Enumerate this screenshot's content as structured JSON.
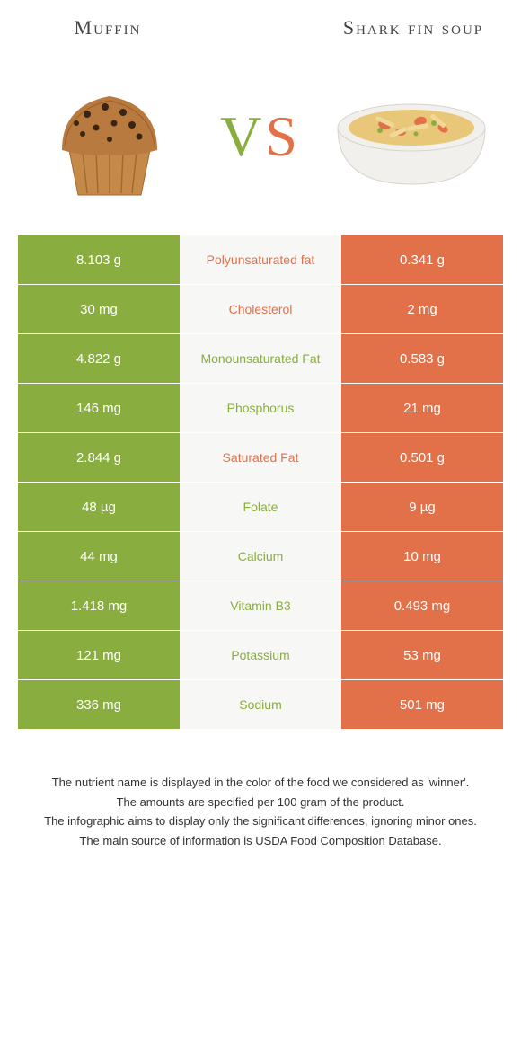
{
  "colors": {
    "left": "#8aad3f",
    "right": "#e2714a",
    "mid_bg": "#f7f7f5",
    "text_dark": "#333333"
  },
  "header": {
    "left_title": "Muffin",
    "right_title": "Shark fin soup",
    "vs_v": "V",
    "vs_s": "S"
  },
  "rows": [
    {
      "left": "8.103 g",
      "label": "Polyunsaturated fat",
      "right": "0.341 g",
      "winner": "right"
    },
    {
      "left": "30 mg",
      "label": "Cholesterol",
      "right": "2 mg",
      "winner": "right"
    },
    {
      "left": "4.822 g",
      "label": "Monounsaturated Fat",
      "right": "0.583 g",
      "winner": "left"
    },
    {
      "left": "146 mg",
      "label": "Phosphorus",
      "right": "21 mg",
      "winner": "left"
    },
    {
      "left": "2.844 g",
      "label": "Saturated Fat",
      "right": "0.501 g",
      "winner": "right"
    },
    {
      "left": "48 µg",
      "label": "Folate",
      "right": "9 µg",
      "winner": "left"
    },
    {
      "left": "44 mg",
      "label": "Calcium",
      "right": "10 mg",
      "winner": "left"
    },
    {
      "left": "1.418 mg",
      "label": "Vitamin B3",
      "right": "0.493 mg",
      "winner": "left"
    },
    {
      "left": "121 mg",
      "label": "Potassium",
      "right": "53 mg",
      "winner": "left"
    },
    {
      "left": "336 mg",
      "label": "Sodium",
      "right": "501 mg",
      "winner": "left"
    }
  ],
  "footnotes": [
    "The nutrient name is displayed in the color of the food we considered as 'winner'.",
    "The amounts are specified per 100 gram of the product.",
    "The infographic aims to display only the significant differences, ignoring minor ones.",
    "The main source of information is USDA Food Composition Database."
  ]
}
